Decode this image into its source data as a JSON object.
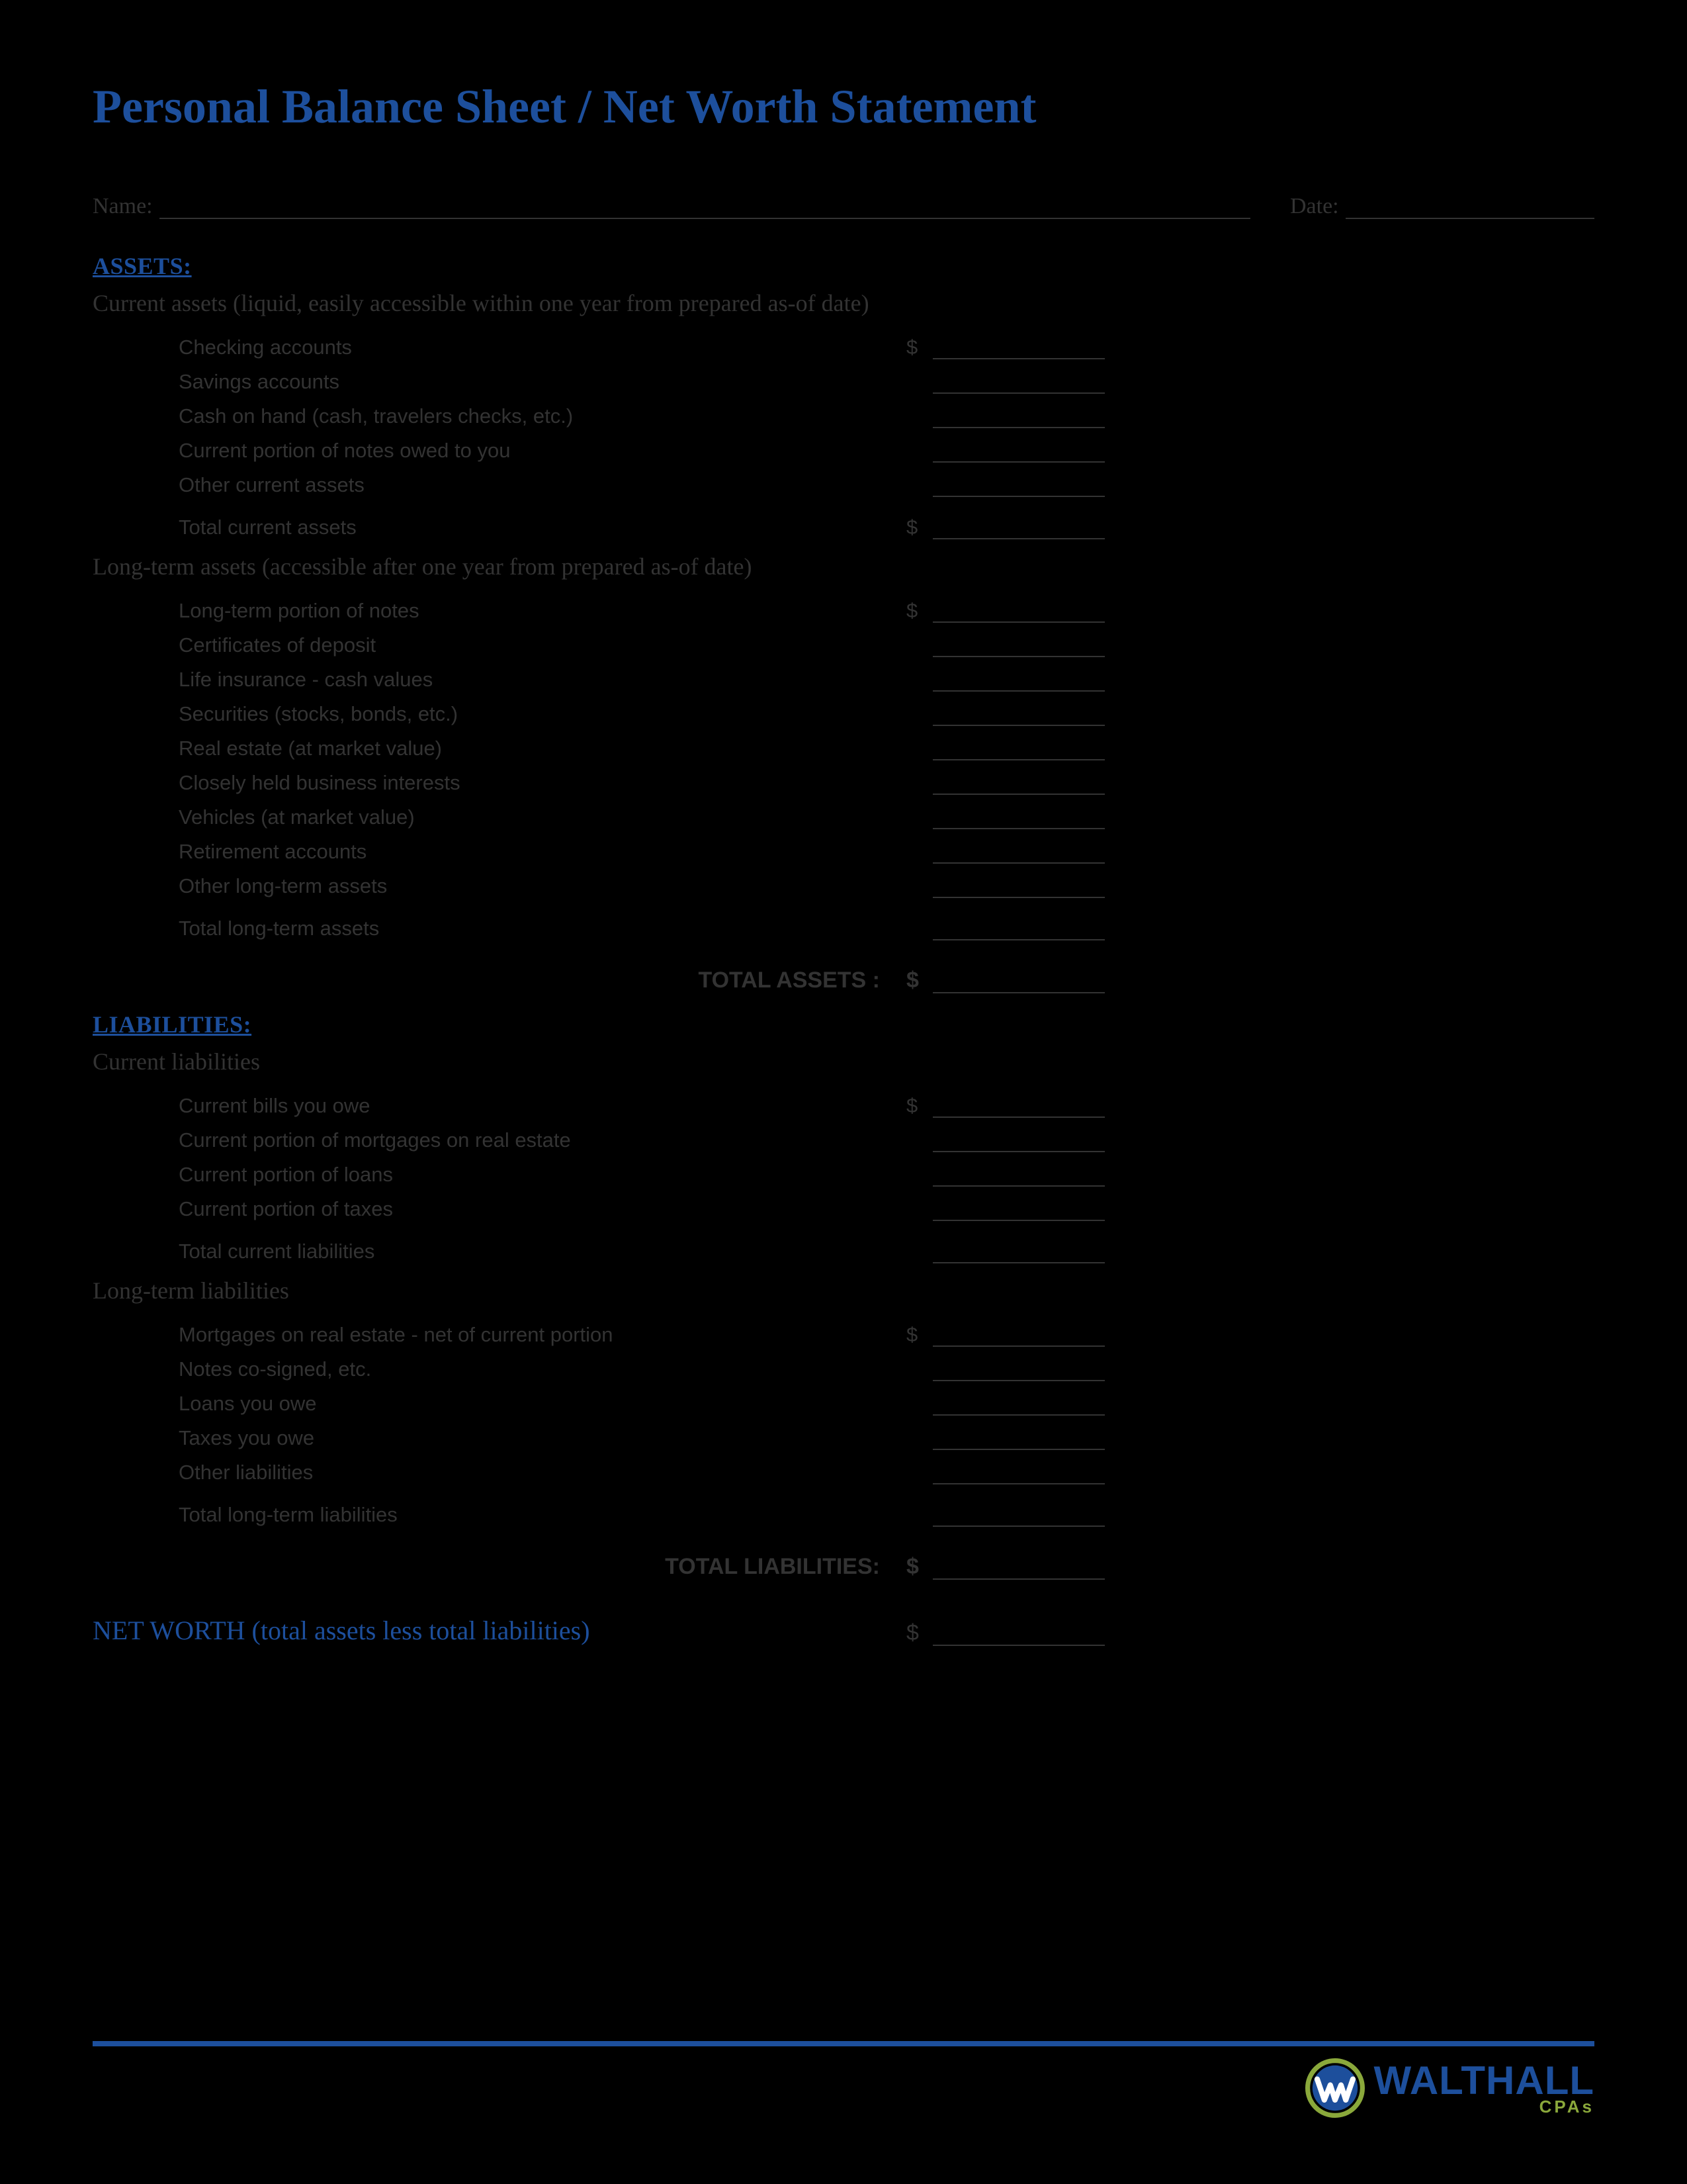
{
  "colors": {
    "accent": "#1d4f9c",
    "text": "#333333",
    "green": "#8aa83b",
    "background": "#ffffff",
    "rule": "#333333"
  },
  "title": "Personal Balance Sheet / Net Worth Statement",
  "header": {
    "name_label": "Name:",
    "date_label": "Date:"
  },
  "assets": {
    "heading": "ASSETS:",
    "current": {
      "heading": "Current assets (liquid, easily accessible within one year from prepared as-of date)",
      "items": [
        {
          "label": "Checking accounts",
          "dollar": "$"
        },
        {
          "label": "Savings accounts",
          "dollar": ""
        },
        {
          "label": "Cash on hand (cash, travelers checks, etc.)",
          "dollar": ""
        },
        {
          "label": "Current portion of notes owed to you",
          "dollar": ""
        },
        {
          "label": "Other current assets",
          "dollar": ""
        }
      ],
      "total": {
        "label": "Total current assets",
        "dollar": "$"
      }
    },
    "longterm": {
      "heading": "Long-term assets (accessible after one year from prepared as-of date)",
      "items": [
        {
          "label": "Long-term portion of notes",
          "dollar": "$"
        },
        {
          "label": "Certificates of deposit",
          "dollar": ""
        },
        {
          "label": "Life insurance - cash values",
          "dollar": ""
        },
        {
          "label": "Securities (stocks, bonds, etc.)",
          "dollar": ""
        },
        {
          "label": "Real estate (at market value)",
          "dollar": ""
        },
        {
          "label": "Closely held business interests",
          "dollar": ""
        },
        {
          "label": "Vehicles (at market value)",
          "dollar": ""
        },
        {
          "label": "Retirement accounts",
          "dollar": ""
        },
        {
          "label": "Other long-term assets",
          "dollar": ""
        }
      ],
      "total": {
        "label": "Total long-term assets",
        "dollar": ""
      }
    },
    "grand": {
      "label": "TOTAL ASSETS :",
      "dollar": "$"
    }
  },
  "liabilities": {
    "heading": "LIABILITIES:",
    "current": {
      "heading": "Current liabilities",
      "items": [
        {
          "label": "Current bills you owe",
          "dollar": "$"
        },
        {
          "label": "Current portion of mortgages on real estate",
          "dollar": ""
        },
        {
          "label": "Current portion of loans",
          "dollar": ""
        },
        {
          "label": "Current portion of taxes",
          "dollar": ""
        }
      ],
      "total": {
        "label": "Total current liabilities",
        "dollar": ""
      }
    },
    "longterm": {
      "heading": "Long-term liabilities",
      "items": [
        {
          "label": "Mortgages on real estate - net of current portion",
          "dollar": "$"
        },
        {
          "label": "Notes co-signed, etc.",
          "dollar": ""
        },
        {
          "label": "Loans you owe",
          "dollar": ""
        },
        {
          "label": "Taxes you owe",
          "dollar": ""
        },
        {
          "label": "Other liabilities",
          "dollar": ""
        }
      ],
      "total": {
        "label": "Total long-term liabilities",
        "dollar": ""
      }
    },
    "grand": {
      "label": "TOTAL LIABILITIES:",
      "dollar": "$"
    }
  },
  "networth": {
    "label": "NET WORTH (total assets less total liabilities)",
    "dollar": "$"
  },
  "footer": {
    "brand": "WALTHALL",
    "sub": "CPAs"
  }
}
